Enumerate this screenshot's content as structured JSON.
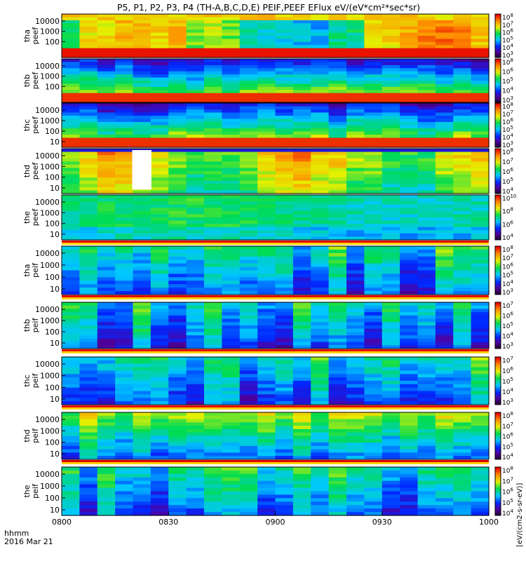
{
  "chart_data": {
    "type": "heatmap",
    "title": "P5, P1, P2, P3, P4 (TH-A,B,C,D,E) PEIF,PEEF EFlux eV/(eV*cm²*sec*sr)",
    "x_axis": {
      "ticks": [
        "0800",
        "0830",
        "0900",
        "0930",
        "1000"
      ],
      "label_unit": "hhmm",
      "date": "2016 Mar 21",
      "range": [
        "08:00",
        "10:00"
      ]
    },
    "colorbar_label": "[eV/(cm2-s-sr-eV)]",
    "panels": [
      {
        "label1": "tha",
        "label2": "peef",
        "yticks": [
          "10000",
          "1000",
          "100"
        ],
        "cb_ticks": [
          [
            "10",
            "8"
          ],
          [
            "10",
            "7"
          ],
          [
            "10",
            "6"
          ],
          [
            "10",
            "5"
          ],
          [
            "10",
            "4"
          ],
          [
            "10",
            "3"
          ]
        ],
        "style": "hot",
        "gap": null
      },
      {
        "label1": "thb",
        "label2": "peef",
        "yticks": [
          "10000",
          "1000",
          "100"
        ],
        "cb_ticks": [
          [
            "10",
            "8"
          ],
          [
            "10",
            "6"
          ],
          [
            "10",
            "5"
          ],
          [
            "10",
            "4"
          ],
          [
            "10",
            "3"
          ]
        ],
        "style": "bluecore",
        "gap": null
      },
      {
        "label1": "thc",
        "label2": "peef",
        "yticks": [
          "10000",
          "1000",
          "100",
          "10"
        ],
        "cb_ticks": [
          [
            "10",
            "8"
          ],
          [
            "10",
            "7"
          ],
          [
            "10",
            "6"
          ],
          [
            "10",
            "5"
          ],
          [
            "10",
            "4"
          ],
          [
            "10",
            "3"
          ]
        ],
        "style": "bluecore",
        "gap": null
      },
      {
        "label1": "thd",
        "label2": "peef",
        "yticks": [
          "10000",
          "1000",
          "100",
          "10"
        ],
        "cb_ticks": [
          [
            "10",
            "8"
          ],
          [
            "10",
            "7"
          ],
          [
            "10",
            "6"
          ],
          [
            "10",
            "5"
          ],
          [
            "10",
            "4"
          ]
        ],
        "style": "warm",
        "gap": [
          0.165,
          0.21
        ]
      },
      {
        "label1": "the",
        "label2": "peef",
        "yticks": [
          "10000",
          "1000",
          "100",
          "10"
        ],
        "cb_ticks": [
          [
            "10",
            "10"
          ],
          [
            "10",
            "8"
          ],
          [
            "10",
            "6"
          ],
          [
            "10",
            "4"
          ]
        ],
        "style": "green",
        "gap": null
      },
      {
        "label1": "tha",
        "label2": "peif",
        "yticks": [
          "10000",
          "1000",
          "100",
          "10"
        ],
        "cb_ticks": [
          [
            "10",
            "8"
          ],
          [
            "10",
            "7"
          ],
          [
            "10",
            "6"
          ],
          [
            "10",
            "5"
          ],
          [
            "10",
            "4"
          ],
          [
            "10",
            "3"
          ]
        ],
        "style": "mixed",
        "gap": null
      },
      {
        "label1": "thb",
        "label2": "peif",
        "yticks": [
          "10000",
          "1000",
          "100",
          "10"
        ],
        "cb_ticks": [
          [
            "10",
            "7"
          ],
          [
            "10",
            "6"
          ],
          [
            "10",
            "5"
          ],
          [
            "10",
            "4"
          ],
          [
            "10",
            "3"
          ]
        ],
        "style": "mixed",
        "gap": null
      },
      {
        "label1": "thc",
        "label2": "peif",
        "yticks": [
          "10000",
          "1000",
          "100",
          "10"
        ],
        "cb_ticks": [
          [
            "10",
            "7"
          ],
          [
            "10",
            "6"
          ],
          [
            "10",
            "5"
          ],
          [
            "10",
            "4"
          ],
          [
            "10",
            "3"
          ]
        ],
        "style": "mixed",
        "gap": null
      },
      {
        "label1": "thd",
        "label2": "peif",
        "yticks": [
          "10000",
          "1000",
          "100",
          "10"
        ],
        "cb_ticks": [
          [
            "10",
            "8"
          ],
          [
            "10",
            "7"
          ],
          [
            "10",
            "6"
          ],
          [
            "10",
            "5"
          ],
          [
            "10",
            "4"
          ]
        ],
        "style": "warmmix",
        "gap": null
      },
      {
        "label1": "the",
        "label2": "peif",
        "yticks": [
          "10000",
          "1000",
          "100",
          "10"
        ],
        "cb_ticks": [
          [
            "10",
            "8"
          ],
          [
            "10",
            "7"
          ],
          [
            "10",
            "6"
          ],
          [
            "10",
            "5"
          ],
          [
            "10",
            "4"
          ]
        ],
        "style": "mixed",
        "gap": null
      }
    ]
  }
}
